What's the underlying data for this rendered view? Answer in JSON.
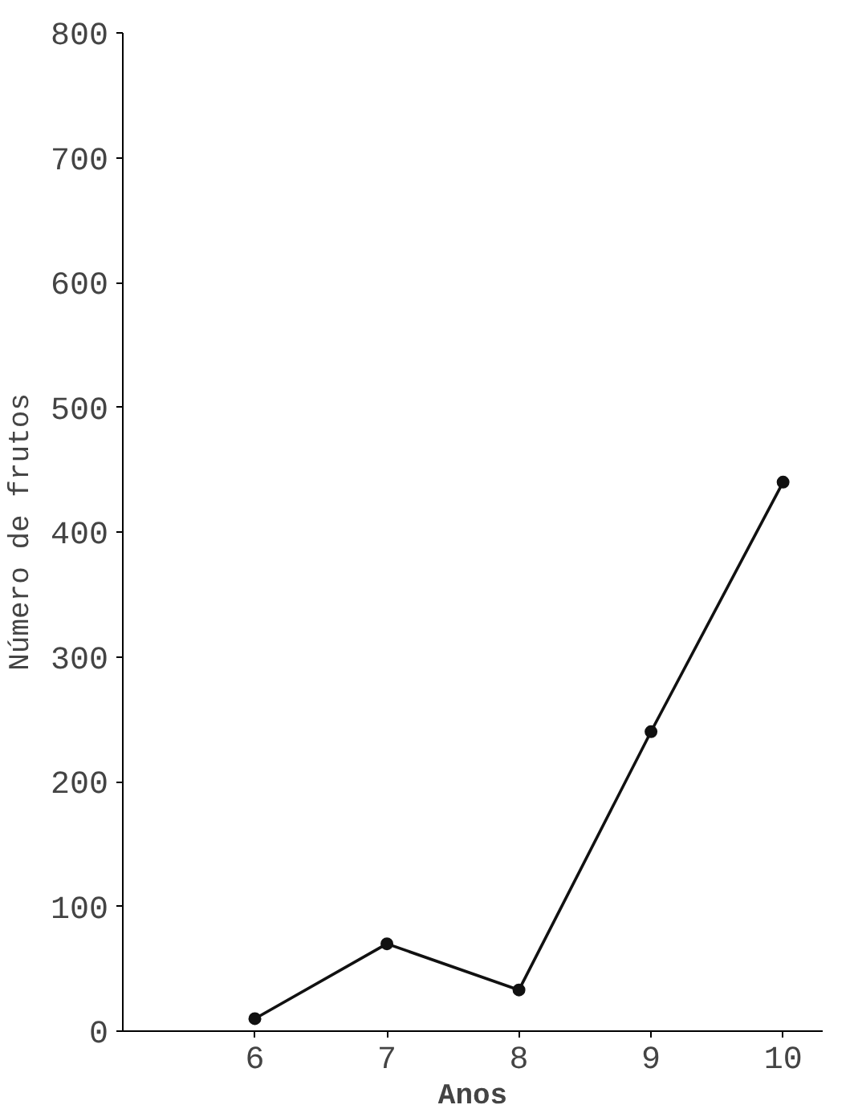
{
  "chart_data": {
    "type": "line",
    "xlabel": "Anos",
    "ylabel": "Número de frutos",
    "x": [
      6,
      7,
      8,
      9,
      10
    ],
    "series": [
      {
        "color": "#111111",
        "values": [
          10,
          70,
          33,
          240,
          440
        ]
      }
    ],
    "xlim": [
      5,
      10.3
    ],
    "xticks": [
      6,
      7,
      8,
      9,
      10
    ],
    "ylim": [
      0,
      800
    ],
    "yticks": [
      0,
      100,
      200,
      300,
      400,
      500,
      600,
      700,
      800
    ],
    "marker": "circle",
    "line_style": "solid"
  }
}
